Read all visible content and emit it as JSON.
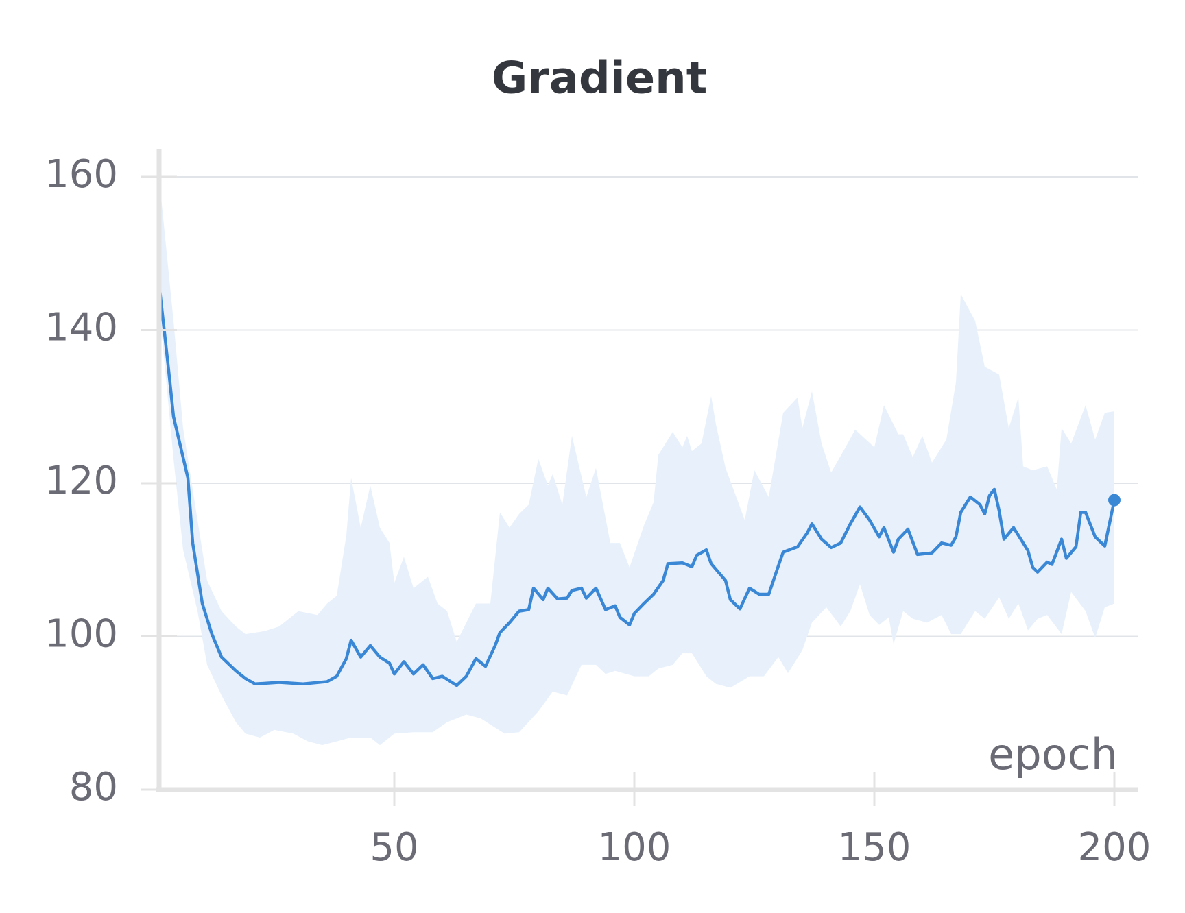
{
  "chart_data": {
    "type": "line",
    "title": "Gradient",
    "x_label": "epoch",
    "x": [
      1,
      3,
      4,
      7,
      8,
      10,
      12,
      14,
      17,
      19,
      21,
      26,
      31,
      36,
      38,
      40,
      41,
      43,
      45,
      47,
      49,
      50,
      52,
      54,
      56,
      58,
      60,
      63,
      65,
      67,
      69,
      71,
      72,
      74,
      76,
      78,
      79,
      81,
      82,
      84,
      86,
      87,
      89,
      90,
      92,
      94,
      96,
      97,
      99,
      100,
      102,
      104,
      106,
      107,
      110,
      112,
      113,
      115,
      116,
      119,
      120,
      122,
      124,
      126,
      128,
      130,
      131,
      134,
      136,
      137,
      139,
      141,
      143,
      145,
      147,
      149,
      151,
      152,
      154,
      155,
      157,
      159,
      162,
      164,
      166,
      167,
      168,
      170,
      172,
      173,
      174,
      175,
      176,
      177,
      179,
      182,
      183,
      184,
      186,
      187,
      189,
      190,
      192,
      193,
      194,
      196,
      198,
      200
    ],
    "values": [
      146,
      134.7,
      128.7,
      120.7,
      112.2,
      104.3,
      100.3,
      97.3,
      95.5,
      94.5,
      93.8,
      94.0,
      93.8,
      94.1,
      94.8,
      97.1,
      99.5,
      97.3,
      98.8,
      97.3,
      96.5,
      95.1,
      96.7,
      95.1,
      96.3,
      94.5,
      94.8,
      93.6,
      94.8,
      97.1,
      96.1,
      98.8,
      100.5,
      101.8,
      103.3,
      103.5,
      106.3,
      104.8,
      106.3,
      104.9,
      105.0,
      106.0,
      106.3,
      105.0,
      106.3,
      103.5,
      104.0,
      102.5,
      101.5,
      103.0,
      104.3,
      105.5,
      107.3,
      109.5,
      109.6,
      109.1,
      110.6,
      111.3,
      109.5,
      107.3,
      104.8,
      103.6,
      106.3,
      105.5,
      105.5,
      109.2,
      111.0,
      111.7,
      113.5,
      114.7,
      112.7,
      111.6,
      112.2,
      114.7,
      116.9,
      115.2,
      113.0,
      114.2,
      111.0,
      112.7,
      114.0,
      110.7,
      110.9,
      112.2,
      111.9,
      113.0,
      116.2,
      118.2,
      117.2,
      116.0,
      118.4,
      119.2,
      116.4,
      112.7,
      114.2,
      111.2,
      109.0,
      108.4,
      109.7,
      109.4,
      112.7,
      110.2,
      111.7,
      116.2,
      116.2,
      113.0,
      111.8,
      117.8
    ],
    "band_upper": {
      "x": [
        1,
        4,
        6,
        9,
        11,
        14,
        17,
        19,
        23,
        26,
        30,
        34,
        36,
        38,
        40,
        41,
        43,
        45,
        47,
        49,
        50,
        52,
        54,
        57,
        59,
        61,
        63,
        67,
        70,
        72,
        74,
        76,
        78,
        80,
        82,
        83,
        85,
        87,
        90,
        92,
        95,
        97,
        99,
        102,
        104,
        105,
        108,
        110,
        111,
        112,
        114,
        116,
        117,
        119,
        123,
        125,
        128,
        131,
        134,
        135,
        137,
        139,
        141,
        144,
        146,
        150,
        152,
        155,
        156,
        158,
        160,
        162,
        165,
        167,
        168,
        171,
        173,
        176,
        178,
        180,
        181,
        183,
        186,
        188,
        189,
        191,
        194,
        196,
        198,
        200
      ],
      "values": [
        160,
        141.2,
        127.2,
        115.2,
        107.3,
        103.3,
        101.3,
        100.3,
        100.7,
        101.3,
        103.3,
        102.8,
        104.3,
        105.3,
        113.2,
        120.7,
        114.2,
        119.7,
        114.2,
        112.2,
        107.0,
        110.4,
        106.3,
        107.8,
        104.3,
        103.3,
        99.3,
        104.3,
        104.3,
        116.2,
        114.2,
        116.0,
        117.2,
        123.2,
        119.7,
        121.2,
        117.2,
        126.2,
        118.2,
        122.0,
        112.2,
        112.2,
        109.0,
        114.5,
        117.5,
        123.7,
        126.7,
        124.7,
        126.2,
        124.2,
        125.2,
        131.4,
        127.7,
        122.0,
        115.2,
        121.7,
        118.2,
        129.2,
        131.2,
        127.2,
        132.0,
        125.2,
        121.4,
        124.7,
        127.0,
        124.7,
        130.2,
        126.4,
        126.4,
        123.4,
        126.2,
        122.7,
        125.7,
        133.2,
        144.7,
        141.2,
        135.2,
        134.2,
        127.2,
        131.2,
        122.2,
        121.7,
        122.2,
        119.2,
        127.2,
        125.2,
        130.2,
        125.7,
        129.2,
        129.4
      ]
    },
    "band_lower": {
      "x": [
        1,
        4,
        6,
        9,
        11,
        14,
        17,
        19,
        22,
        25,
        29,
        32,
        35,
        38,
        41,
        45,
        47,
        50,
        54,
        58,
        61,
        65,
        68,
        73,
        76,
        80,
        83,
        86,
        89,
        92,
        94,
        96,
        100,
        103,
        105,
        108,
        110,
        112,
        115,
        117,
        120,
        124,
        127,
        130,
        132,
        135,
        137,
        140,
        143,
        145,
        147,
        149,
        151,
        153,
        154,
        156,
        158,
        161,
        164,
        166,
        168,
        171,
        173,
        176,
        178,
        180,
        182,
        184,
        186,
        189,
        191,
        194,
        196,
        198,
        200
      ],
      "values": [
        143.2,
        123.2,
        111.3,
        103.3,
        96.3,
        92.3,
        88.8,
        87.3,
        86.8,
        87.8,
        87.3,
        86.3,
        85.8,
        86.3,
        86.8,
        86.8,
        85.8,
        87.3,
        87.5,
        87.5,
        88.8,
        89.8,
        89.3,
        87.3,
        87.5,
        90.2,
        92.8,
        92.3,
        96.3,
        96.3,
        95.1,
        95.5,
        94.8,
        94.8,
        95.8,
        96.3,
        97.8,
        97.8,
        94.8,
        93.8,
        93.3,
        94.8,
        94.8,
        97.3,
        95.2,
        98.2,
        101.8,
        103.8,
        101.3,
        103.3,
        106.8,
        102.8,
        101.5,
        102.5,
        99.0,
        103.3,
        102.3,
        101.8,
        102.8,
        100.3,
        100.3,
        103.3,
        102.3,
        105.1,
        102.3,
        104.3,
        100.8,
        102.3,
        102.8,
        100.3,
        105.8,
        103.3,
        99.8,
        103.8,
        104.3
      ]
    },
    "line_color": "#3a87d6",
    "band_color": "#e8f1fb",
    "xlim": [
      1,
      205
    ],
    "xticks": [
      50,
      100,
      150,
      200
    ],
    "ylim": [
      80,
      160
    ],
    "yticks": [
      80,
      100,
      120,
      140,
      160
    ],
    "grid": true
  }
}
